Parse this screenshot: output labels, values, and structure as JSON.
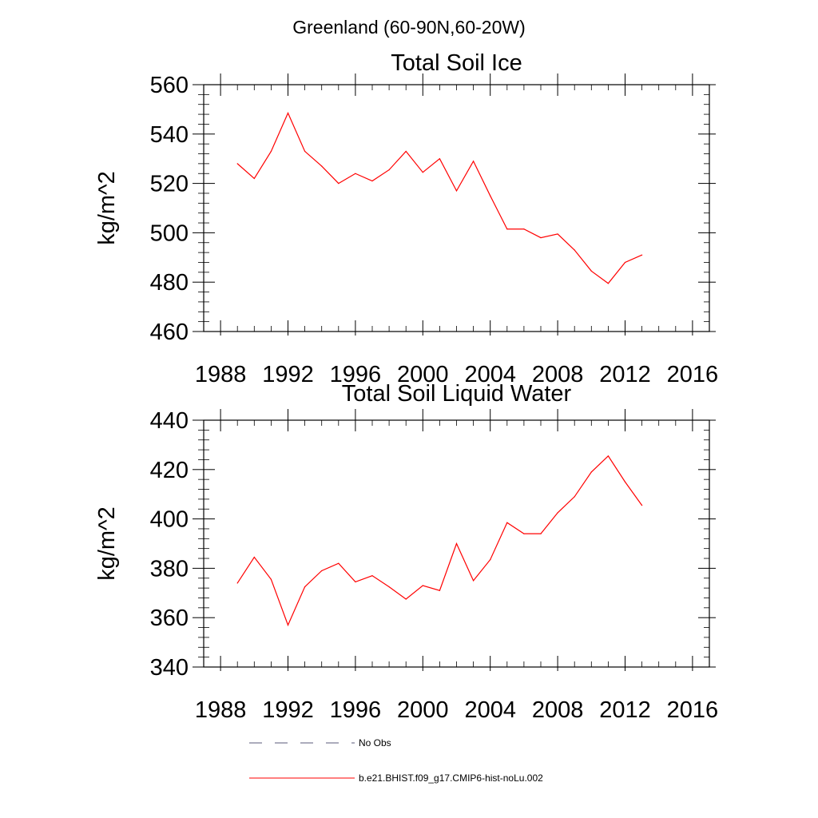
{
  "figure": {
    "title": "Greenland (60-90N,60-20W)"
  },
  "chart_data": [
    {
      "type": "line",
      "title": "Total Soil Ice",
      "xlabel": "",
      "ylabel": "kg/m^2",
      "xlim": [
        1987,
        2017
      ],
      "ylim": [
        460,
        560
      ],
      "x_ticks": [
        1988,
        1992,
        1996,
        2000,
        2004,
        2008,
        2012,
        2016
      ],
      "y_ticks": [
        460,
        480,
        500,
        520,
        540,
        560
      ],
      "grid": false,
      "series": [
        {
          "name": "b.e21.BHIST.f09_g17.CMIP6-hist-noLu.002",
          "color": "#ff0000",
          "style": "solid",
          "x": [
            1989,
            1990,
            1991,
            1992,
            1993,
            1994,
            1995,
            1996,
            1997,
            1998,
            1999,
            2000,
            2001,
            2002,
            2003,
            2004,
            2005,
            2006,
            2007,
            2008,
            2009,
            2010,
            2011,
            2012,
            2013
          ],
          "y": [
            528,
            522,
            533,
            548.5,
            533,
            527,
            520,
            524,
            521,
            525.5,
            533,
            524.5,
            530,
            517,
            529,
            515,
            501.5,
            501.5,
            498,
            499.5,
            493,
            484.5,
            479.5,
            488,
            491
          ]
        }
      ]
    },
    {
      "type": "line",
      "title": "Total Soil Liquid Water",
      "xlabel": "",
      "ylabel": "kg/m^2",
      "xlim": [
        1987,
        2017
      ],
      "ylim": [
        340,
        440
      ],
      "x_ticks": [
        1988,
        1992,
        1996,
        2000,
        2004,
        2008,
        2012,
        2016
      ],
      "y_ticks": [
        340,
        360,
        380,
        400,
        420,
        440
      ],
      "grid": false,
      "series": [
        {
          "name": "b.e21.BHIST.f09_g17.CMIP6-hist-noLu.002",
          "color": "#ff0000",
          "style": "solid",
          "x": [
            1989,
            1990,
            1991,
            1992,
            1993,
            1994,
            1995,
            1996,
            1997,
            1998,
            1999,
            2000,
            2001,
            2002,
            2003,
            2004,
            2005,
            2006,
            2007,
            2008,
            2009,
            2010,
            2011,
            2012,
            2013
          ],
          "y": [
            374,
            384.5,
            375.5,
            357,
            372.5,
            379,
            382,
            374.5,
            377,
            372.5,
            367.5,
            373,
            371,
            390,
            375,
            383.5,
            398.5,
            394,
            394,
            402.5,
            409,
            419,
            425.5,
            415,
            405.5
          ]
        }
      ]
    }
  ],
  "legend": {
    "placement": "bottom",
    "entries": [
      {
        "label": "No Obs",
        "color": "#5a5a7a",
        "style": "dashed"
      },
      {
        "label": "b.e21.BHIST.f09_g17.CMIP6-hist-noLu.002",
        "color": "#ff0000",
        "style": "solid"
      }
    ]
  }
}
